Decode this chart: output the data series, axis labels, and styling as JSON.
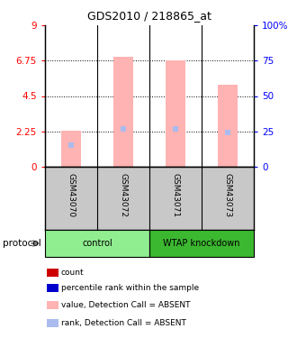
{
  "title": "GDS2010 / 218865_at",
  "samples": [
    "GSM43070",
    "GSM43072",
    "GSM43071",
    "GSM43073"
  ],
  "bar_values": [
    2.3,
    7.0,
    6.75,
    5.2
  ],
  "rank_values": [
    15,
    27,
    27,
    24
  ],
  "ylim_left": [
    0,
    9
  ],
  "ylim_right": [
    0,
    100
  ],
  "yticks_left": [
    0,
    2.25,
    4.5,
    6.75,
    9
  ],
  "yticks_right": [
    0,
    25,
    50,
    75,
    100
  ],
  "ytick_labels_left": [
    "0",
    "2.25",
    "4.5",
    "6.75",
    "9"
  ],
  "ytick_labels_right": [
    "0",
    "25",
    "50",
    "75",
    "100%"
  ],
  "bar_color": "#FFB3B3",
  "rank_color": "#AABBEE",
  "group_colors": {
    "control": "#90EE90",
    "WTAP knockdown": "#3CB830"
  },
  "bg_sample": "#C8C8C8",
  "legend_items": [
    {
      "color": "#CC0000",
      "label": "count"
    },
    {
      "color": "#0000CC",
      "label": "percentile rank within the sample"
    },
    {
      "color": "#FFB3B3",
      "label": "value, Detection Call = ABSENT"
    },
    {
      "color": "#AABBEE",
      "label": "rank, Detection Call = ABSENT"
    }
  ],
  "group_bounds": {
    "control": [
      0,
      1
    ],
    "WTAP knockdown": [
      2,
      3
    ]
  }
}
